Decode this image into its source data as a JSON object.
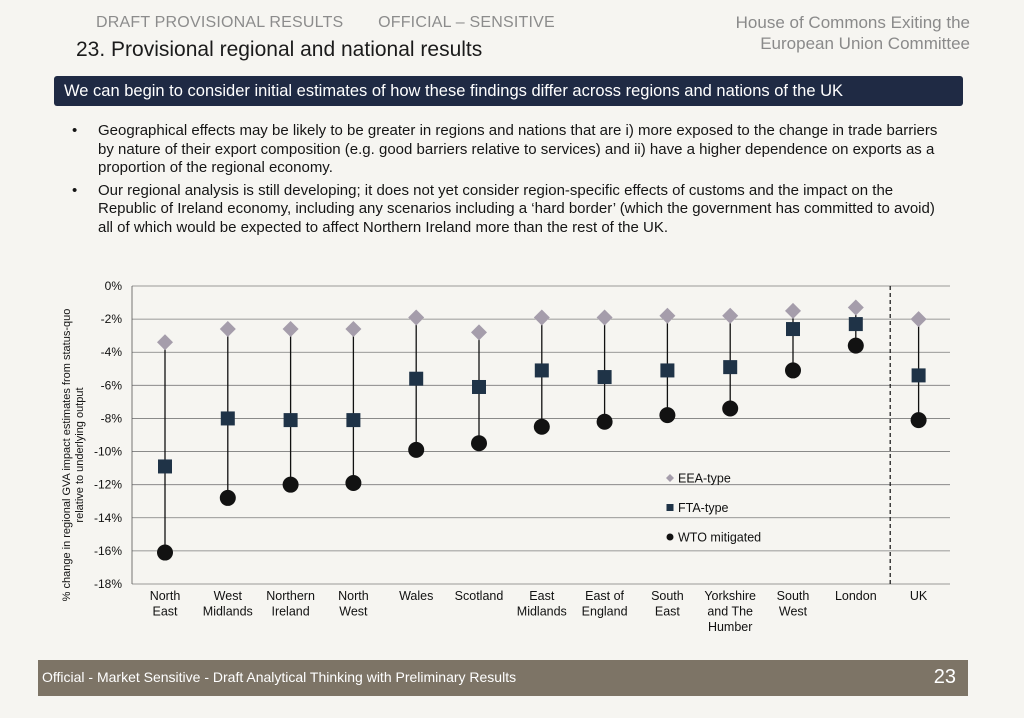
{
  "header": {
    "draft_label": "DRAFT PROVISIONAL RESULTS",
    "sensitivity_label": "OFFICIAL – SENSITIVE",
    "committee_line1": "House of Commons Exiting the",
    "committee_line2": "European Union Committee"
  },
  "title": "23. Provisional regional and national results",
  "banner": "We can begin to consider initial estimates of how these findings differ across regions and nations of the UK",
  "bullets": [
    "Geographical effects may be likely to be greater in regions and nations that are i) more exposed to the change in trade barriers by nature of their export composition (e.g. good barriers relative to services) and ii) have a higher dependence on exports as a proportion of the regional economy.",
    "Our regional analysis is still developing; it does not yet consider region-specific effects of customs and the impact on the Republic of Ireland economy, including any scenarios including a ‘hard border’ (which the government has committed to avoid) all of which would be expected to affect Northern Ireland more than the rest of the UK."
  ],
  "chart_data": {
    "type": "scatter",
    "ylabel": "% change in regional GVA impact estimates from status-quo relative to underlying output",
    "ylim": [
      -18,
      0
    ],
    "yticks": [
      0,
      -2,
      -4,
      -6,
      -8,
      -10,
      -12,
      -14,
      -16,
      -18
    ],
    "ytick_labels": [
      "0%",
      "-2%",
      "-4%",
      "-6%",
      "-8%",
      "-10%",
      "-12%",
      "-14%",
      "-16%",
      "-18%"
    ],
    "grid": true,
    "legend_position": "bottom-right",
    "categories": [
      [
        "North",
        "East"
      ],
      [
        "West",
        "Midlands"
      ],
      [
        "Northern",
        "Ireland"
      ],
      [
        "North",
        "West"
      ],
      [
        "Wales"
      ],
      [
        "Scotland"
      ],
      [
        "East",
        "Midlands"
      ],
      [
        "East of",
        "England"
      ],
      [
        "South",
        "East"
      ],
      [
        "Yorkshire",
        "and The",
        "Humber"
      ],
      [
        "South",
        "West"
      ],
      [
        "London"
      ],
      [
        "UK"
      ]
    ],
    "series": [
      {
        "name": "EEA-type",
        "marker": "diamond",
        "color": "#a59dab",
        "values": [
          -3.4,
          -2.6,
          -2.6,
          -2.6,
          -1.9,
          -2.8,
          -1.9,
          -1.9,
          -1.8,
          -1.8,
          -1.5,
          -1.3,
          -2.0
        ]
      },
      {
        "name": "FTA-type",
        "marker": "square",
        "color": "#1f3347",
        "values": [
          -10.9,
          -8.0,
          -8.1,
          -8.1,
          -5.6,
          -6.1,
          -5.1,
          -5.5,
          -5.1,
          -4.9,
          -2.6,
          -2.3,
          -5.4
        ]
      },
      {
        "name": "WTO mitigated",
        "marker": "circle",
        "color": "#121212",
        "values": [
          -16.1,
          -12.8,
          -12.0,
          -11.9,
          -9.9,
          -9.5,
          -8.5,
          -8.2,
          -7.8,
          -7.4,
          -5.1,
          -3.6,
          -8.1
        ]
      }
    ]
  },
  "footer": {
    "text": "Official - Market Sensitive - Draft Analytical Thinking with Preliminary Results",
    "page_number": "23"
  }
}
